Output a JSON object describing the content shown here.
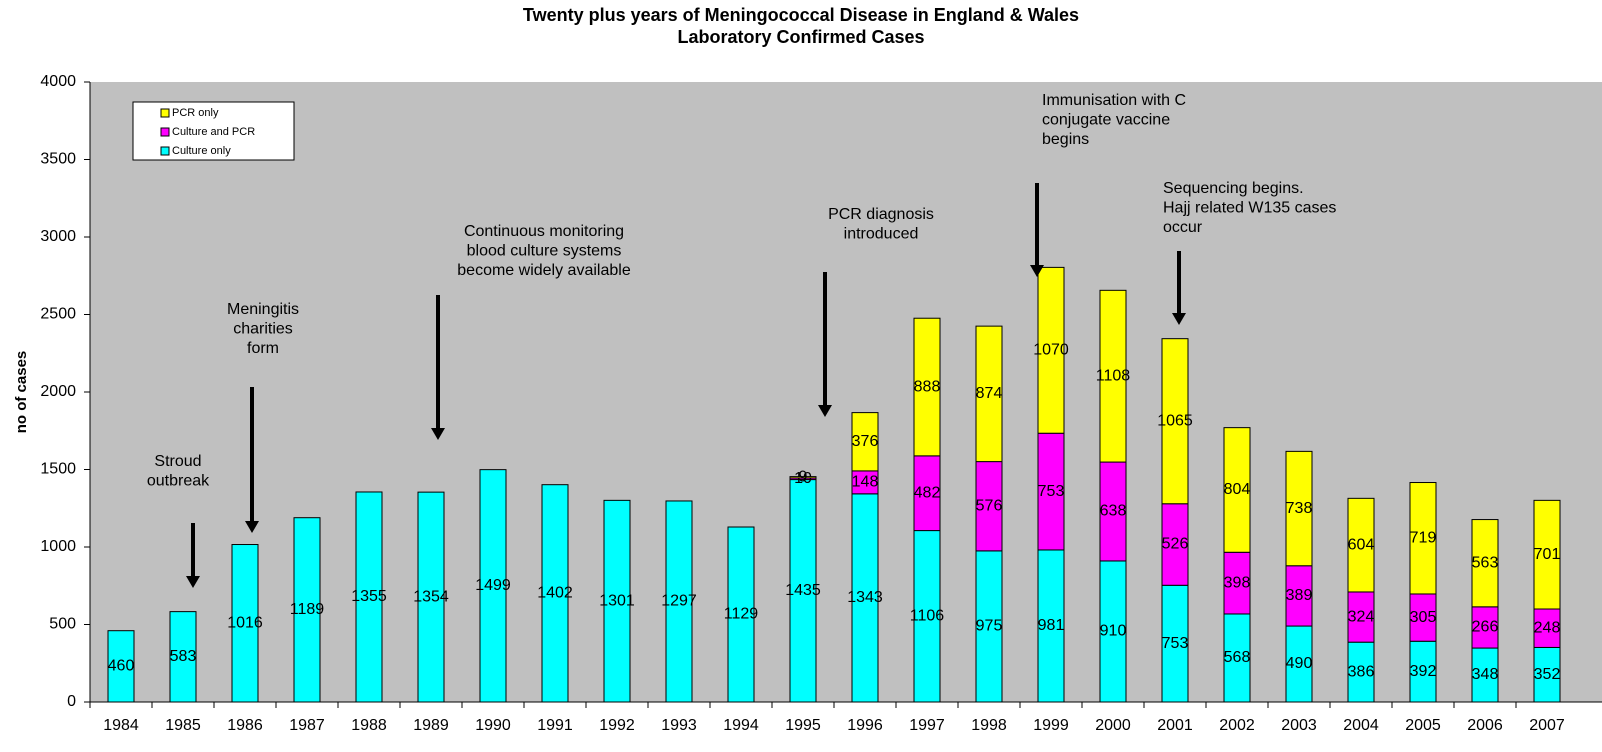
{
  "chart_data": {
    "type": "stacked_bar",
    "title": "Twenty plus years of Meningococcal Disease in England & Wales",
    "subtitle": "Laboratory Confirmed Cases",
    "y_label": "no of cases",
    "categories": [
      "1984",
      "1985",
      "1986",
      "1987",
      "1988",
      "1989",
      "1990",
      "1991",
      "1992",
      "1993",
      "1994",
      "1995",
      "1996",
      "1997",
      "1998",
      "1999",
      "2000",
      "2001",
      "2002",
      "2003",
      "2004",
      "2005",
      "2006",
      "2007"
    ],
    "series": [
      {
        "name": "Culture only",
        "color": "#00ffff",
        "values": [
          460,
          583,
          1016,
          1189,
          1355,
          1354,
          1499,
          1402,
          1301,
          1297,
          1129,
          1435,
          1343,
          1106,
          975,
          981,
          910,
          753,
          568,
          490,
          386,
          392,
          348,
          352
        ]
      },
      {
        "name": "Culture and PCR",
        "color": "#ff00ff",
        "values": [
          null,
          null,
          null,
          null,
          null,
          null,
          null,
          null,
          null,
          null,
          null,
          10,
          148,
          482,
          576,
          753,
          638,
          526,
          398,
          389,
          324,
          305,
          266,
          248
        ]
      },
      {
        "name": "PCR only",
        "color": "#ffff00",
        "values": [
          null,
          null,
          null,
          null,
          null,
          null,
          null,
          null,
          null,
          null,
          null,
          9,
          376,
          888,
          874,
          1070,
          1108,
          1065,
          804,
          738,
          604,
          719,
          563,
          701
        ]
      }
    ],
    "ylim": [
      0,
      4000
    ],
    "yticks": [
      0,
      500,
      1000,
      1500,
      2000,
      2500,
      3000,
      3500,
      4000
    ],
    "legend": "top-left",
    "annotations": [
      {
        "lines": [
          "Stroud",
          "outbreak"
        ]
      },
      {
        "lines": [
          "Meningitis",
          "charities",
          "form"
        ]
      },
      {
        "lines": [
          "Continuous monitoring",
          "blood culture systems",
          "become widely available"
        ]
      },
      {
        "lines": [
          "PCR diagnosis",
          "introduced"
        ]
      },
      {
        "lines": [
          "Immunisation with C",
          "conjugate vaccine",
          "begins"
        ]
      },
      {
        "lines": [
          "Sequencing begins.",
          "Hajj related W135 cases",
          "occur"
        ]
      }
    ]
  }
}
